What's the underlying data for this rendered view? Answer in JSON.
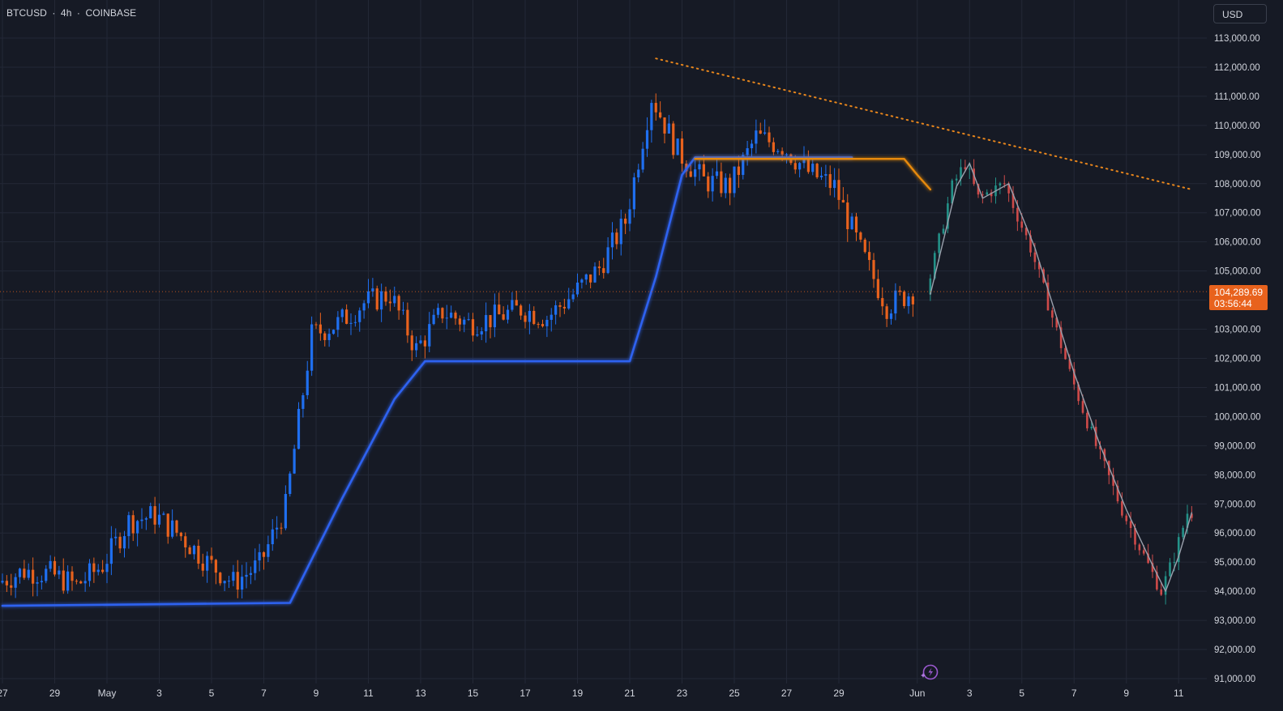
{
  "header": {
    "symbol": "BTCUSD",
    "interval": "4h",
    "exchange": "COINBASE",
    "separator": "·"
  },
  "toolbar": {
    "currency_label": "USD"
  },
  "price_label": {
    "price": "104,289.69",
    "countdown": "03:56:44"
  },
  "icons": {
    "assistant": "sparkle-bolt-icon"
  },
  "colors": {
    "background": "#161a25",
    "grid": "#232836",
    "axis_text": "#d1d4dc",
    "up_candle": "#1f6ff0",
    "down_candle": "#e8621d",
    "projection_up": "#26a69a",
    "projection_down": "#ef5350",
    "blue_line": "#2d62f0",
    "orange_line": "#e88a10",
    "trendline": "#e8861c",
    "projection_path": "#9aa0ac",
    "last_price_bg": "#e8621d"
  },
  "chart_data": {
    "type": "candlestick",
    "timeframe": "4h",
    "x_axis": {
      "tick_labels": [
        "27",
        "29",
        "May",
        "3",
        "5",
        "7",
        "9",
        "11",
        "13",
        "15",
        "17",
        "19",
        "21",
        "23",
        "25",
        "27",
        "29",
        "Jun",
        "3",
        "5",
        "7",
        "9",
        "11"
      ],
      "tick_dates": [
        "2025-04-27",
        "2025-04-29",
        "2025-05-01",
        "2025-05-03",
        "2025-05-05",
        "2025-05-07",
        "2025-05-09",
        "2025-05-11",
        "2025-05-13",
        "2025-05-15",
        "2025-05-17",
        "2025-05-19",
        "2025-05-21",
        "2025-05-23",
        "2025-05-25",
        "2025-05-27",
        "2025-05-29",
        "2025-06-01",
        "2025-06-03",
        "2025-06-05",
        "2025-06-07",
        "2025-06-09",
        "2025-06-11"
      ],
      "range": [
        "2025-04-27",
        "2025-06-12T12:00"
      ]
    },
    "y_axis": {
      "range": [
        91000,
        113000
      ],
      "ticks": [
        91000,
        92000,
        93000,
        94000,
        95000,
        96000,
        97000,
        98000,
        99000,
        100000,
        101000,
        102000,
        103000,
        104000,
        105000,
        106000,
        107000,
        108000,
        109000,
        110000,
        111000,
        112000,
        113000
      ],
      "tick_labels": [
        "91,000.00",
        "92,000.00",
        "93,000.00",
        "94,000.00",
        "95,000.00",
        "96,000.00",
        "97,000.00",
        "98,000.00",
        "99,000.00",
        "100,000.00",
        "101,000.00",
        "102,000.00",
        "103,000.00",
        "104,000.00",
        "105,000.00",
        "106,000.00",
        "107,000.00",
        "108,000.00",
        "109,000.00",
        "110,000.00",
        "111,000.00",
        "112,000.00",
        "113,000.00"
      ]
    },
    "grid": true,
    "last_price": 104289.69,
    "price_path": [
      [
        "2025-04-27",
        94300
      ],
      [
        "2025-04-28",
        94700
      ],
      [
        "2025-04-29",
        94600
      ],
      [
        "2025-04-30",
        94200
      ],
      [
        "2025-05-01",
        94900
      ],
      [
        "2025-05-02",
        96400
      ],
      [
        "2025-05-03",
        96600
      ],
      [
        "2025-05-04",
        95900
      ],
      [
        "2025-05-05",
        95000
      ],
      [
        "2025-05-06",
        94300
      ],
      [
        "2025-05-07",
        94900
      ],
      [
        "2025-05-08",
        96900
      ],
      [
        "2025-05-09",
        102800
      ],
      [
        "2025-05-10",
        103200
      ],
      [
        "2025-05-11",
        103900
      ],
      [
        "2025-05-12",
        104200
      ],
      [
        "2025-05-13",
        102300
      ],
      [
        "2025-05-14",
        103600
      ],
      [
        "2025-05-15",
        103200
      ],
      [
        "2025-05-16",
        103400
      ],
      [
        "2025-05-17",
        103700
      ],
      [
        "2025-05-18",
        103400
      ],
      [
        "2025-05-19",
        104200
      ],
      [
        "2025-05-20",
        105100
      ],
      [
        "2025-05-21",
        106700
      ],
      [
        "2025-05-22",
        111000
      ],
      [
        "2025-05-23",
        109100
      ],
      [
        "2025-05-24",
        108100
      ],
      [
        "2025-05-25",
        107900
      ],
      [
        "2025-05-26",
        109600
      ],
      [
        "2025-05-27",
        109300
      ],
      [
        "2025-05-28",
        108400
      ],
      [
        "2025-05-29",
        107900
      ],
      [
        "2025-05-30",
        105700
      ],
      [
        "2025-05-31",
        103800
      ],
      [
        "2025-06-01",
        104300
      ]
    ],
    "blue_line": [
      [
        "2025-04-27",
        93500
      ],
      [
        "2025-05-08",
        93600
      ],
      [
        "2025-05-10",
        97200
      ],
      [
        "2025-05-12",
        100600
      ],
      [
        "2025-05-13T04:00",
        101900
      ],
      [
        "2025-05-21",
        101900
      ],
      [
        "2025-05-22",
        104800
      ],
      [
        "2025-05-23",
        108300
      ],
      [
        "2025-05-23T12:00",
        108900
      ],
      [
        "2025-05-29T12:00",
        108900
      ]
    ],
    "orange_line": [
      [
        "2025-05-23T12:00",
        108850
      ],
      [
        "2025-05-31T12:00",
        108850
      ],
      [
        "2025-06-01",
        108300
      ],
      [
        "2025-06-01T12:00",
        107800
      ]
    ],
    "trendline": {
      "style": "dotted",
      "points": [
        [
          "2025-05-22",
          112300
        ],
        [
          "2025-06-11T12:00",
          107800
        ]
      ]
    },
    "projection_path": [
      [
        "2025-06-01T12:00",
        104200
      ],
      [
        "2025-06-02T12:00",
        107900
      ],
      [
        "2025-06-03",
        108700
      ],
      [
        "2025-06-03T12:00",
        107500
      ],
      [
        "2025-06-04T12:00",
        108000
      ],
      [
        "2025-06-05T12:00",
        105800
      ],
      [
        "2025-06-07",
        101500
      ],
      [
        "2025-06-08",
        99000
      ],
      [
        "2025-06-09",
        96800
      ],
      [
        "2025-06-10",
        94900
      ],
      [
        "2025-06-10T12:00",
        94000
      ],
      [
        "2025-06-11",
        95200
      ],
      [
        "2025-06-11T12:00",
        96700
      ]
    ]
  }
}
